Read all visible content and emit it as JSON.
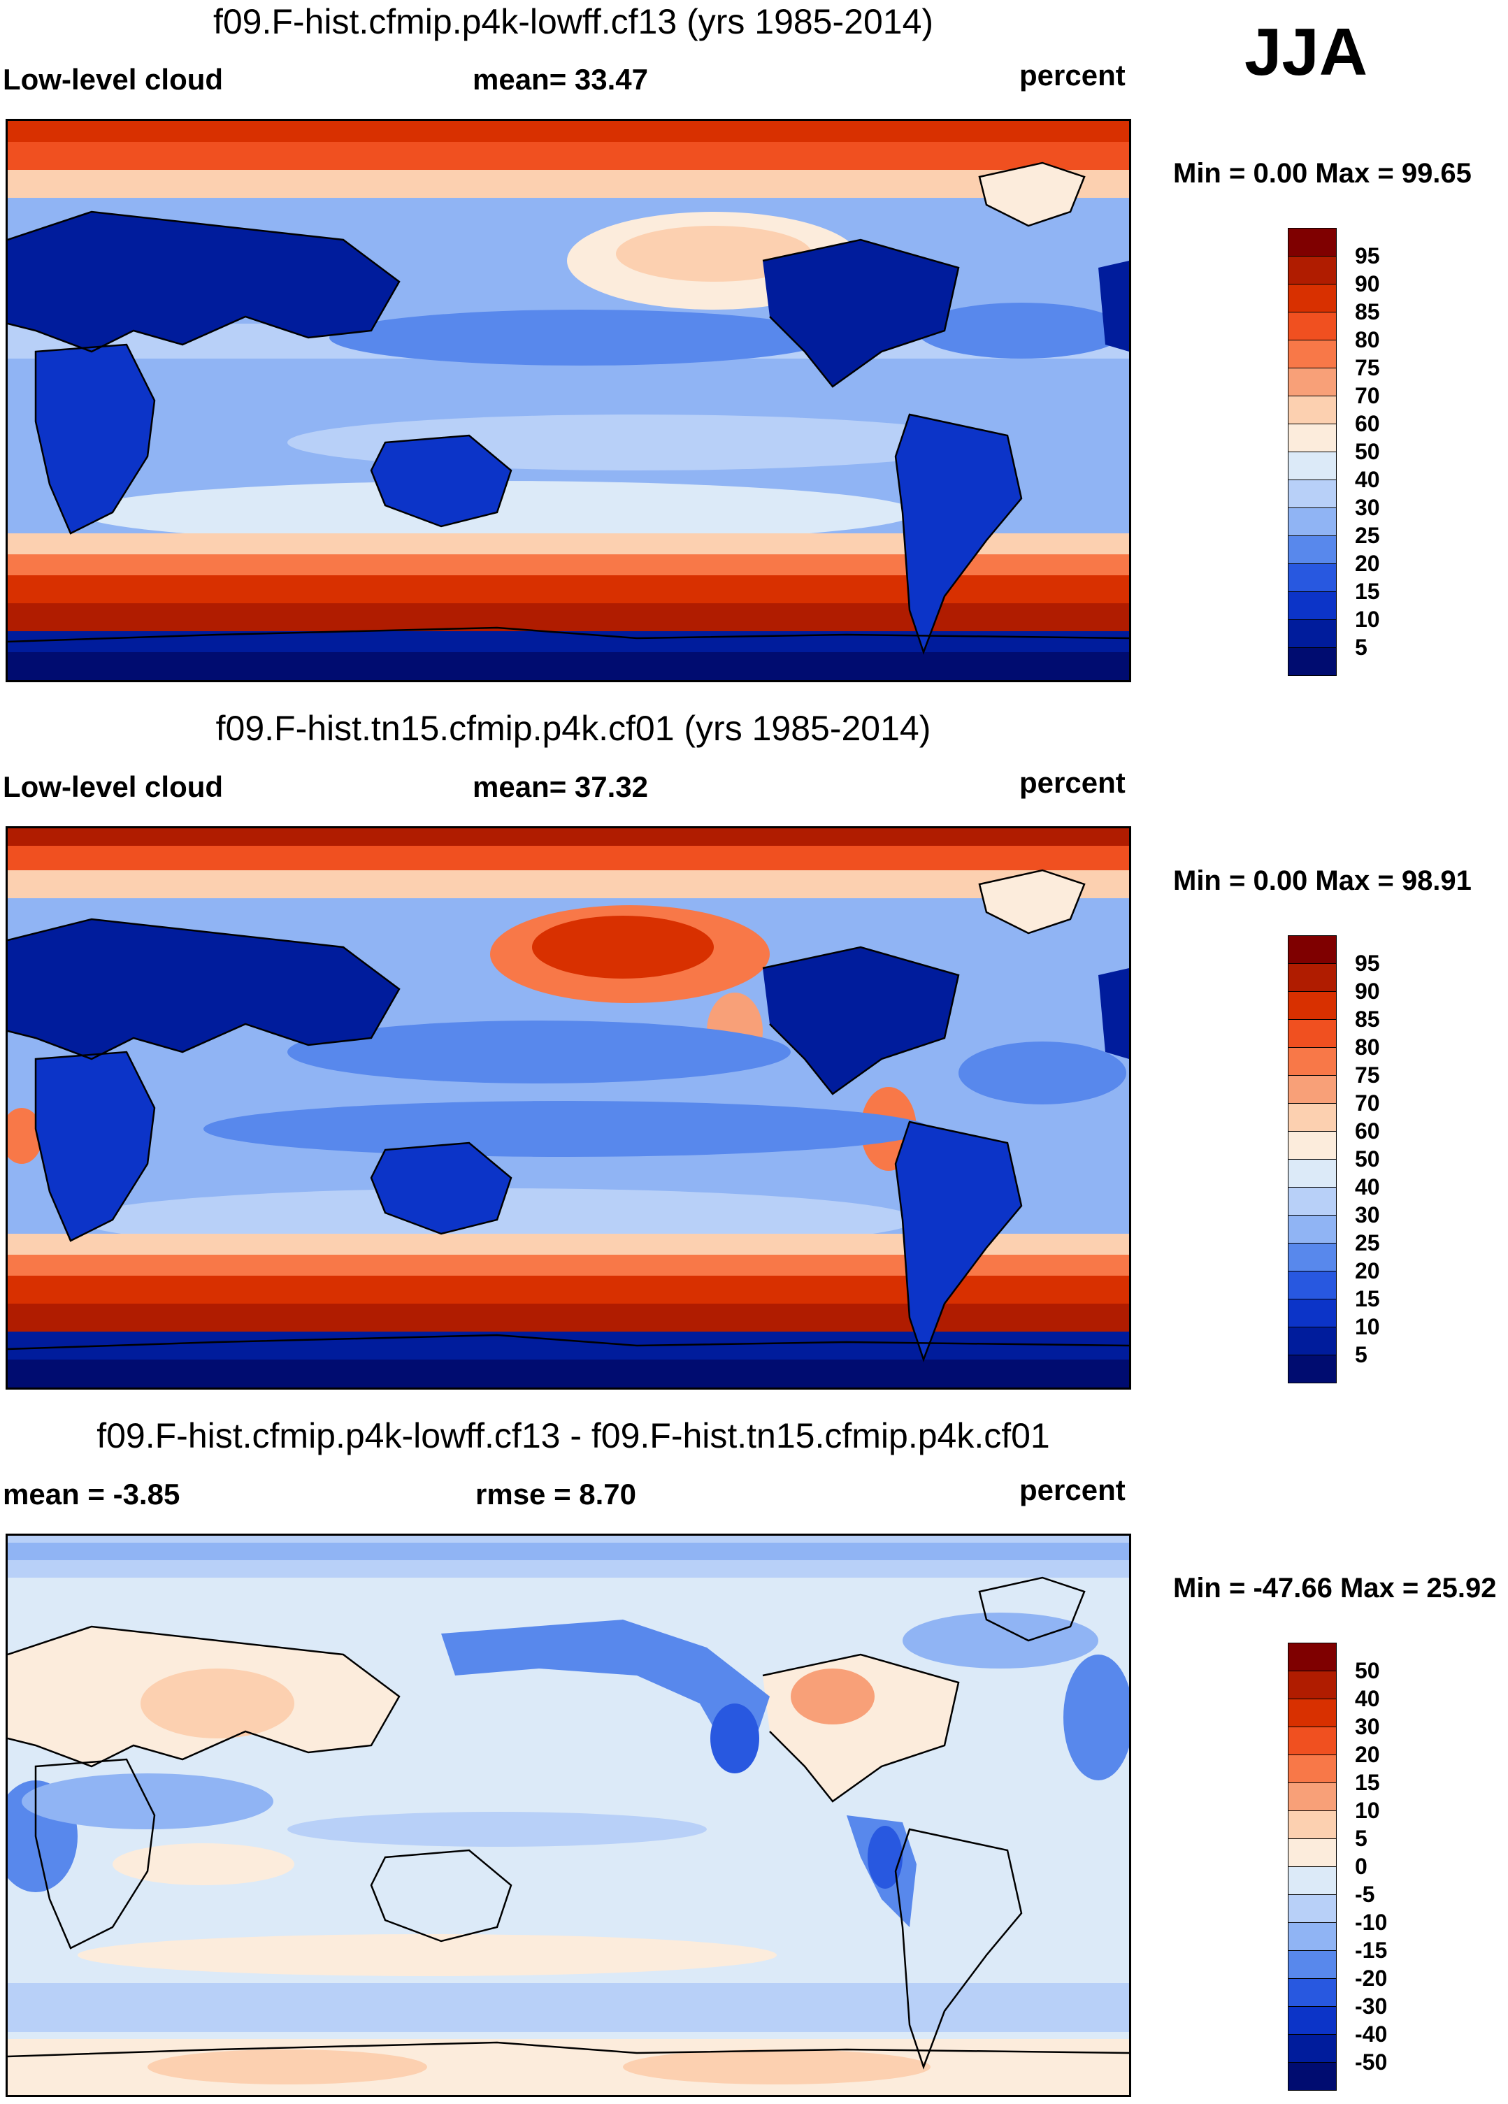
{
  "season": "JJA",
  "panels": [
    {
      "id": "p1",
      "title": "f09.F-hist.cfmip.p4k-lowff.cf13 (yrs 1985-2014)",
      "left_label": "Low-level cloud",
      "center_label": "mean=  33.47",
      "right_label": "percent",
      "minmax": "Min =   0.00 Max =  99.65",
      "colorbar": {
        "labels": [
          "95",
          "90",
          "85",
          "80",
          "75",
          "70",
          "60",
          "50",
          "40",
          "30",
          "25",
          "20",
          "15",
          "10",
          "5"
        ],
        "colors": [
          "#7f0000",
          "#b01c00",
          "#d83000",
          "#f05020",
          "#f87848",
          "#f8a078",
          "#fcd0b0",
          "#fcecdc",
          "#dceaf8",
          "#b8d0f8",
          "#90b4f4",
          "#5888ec",
          "#2858e0",
          "#0c34c8",
          "#001c9c",
          "#000c70"
        ]
      }
    },
    {
      "id": "p2",
      "title": "f09.F-hist.tn15.cfmip.p4k.cf01 (yrs 1985-2014)",
      "left_label": "Low-level cloud",
      "center_label": "mean=  37.32",
      "right_label": "percent",
      "minmax": "Min =   0.00 Max =  98.91",
      "colorbar": {
        "labels": [
          "95",
          "90",
          "85",
          "80",
          "75",
          "70",
          "60",
          "50",
          "40",
          "30",
          "25",
          "20",
          "15",
          "10",
          "5"
        ],
        "colors": [
          "#7f0000",
          "#b01c00",
          "#d83000",
          "#f05020",
          "#f87848",
          "#f8a078",
          "#fcd0b0",
          "#fcecdc",
          "#dceaf8",
          "#b8d0f8",
          "#90b4f4",
          "#5888ec",
          "#2858e0",
          "#0c34c8",
          "#001c9c",
          "#000c70"
        ]
      }
    },
    {
      "id": "p3",
      "title": "f09.F-hist.cfmip.p4k-lowff.cf13 - f09.F-hist.tn15.cfmip.p4k.cf01",
      "left_label": "mean =  -3.85",
      "center_label": "rmse =   8.70",
      "right_label": "percent",
      "minmax": "Min = -47.66 Max =  25.92",
      "colorbar": {
        "labels": [
          "50",
          "40",
          "30",
          "20",
          "15",
          "10",
          "5",
          "0",
          "-5",
          "-10",
          "-15",
          "-20",
          "-30",
          "-40",
          "-50"
        ],
        "colors": [
          "#7f0000",
          "#b01c00",
          "#d83000",
          "#f05020",
          "#f87848",
          "#f8a078",
          "#fcd0b0",
          "#fcecdc",
          "#dceaf8",
          "#b8d0f8",
          "#90b4f4",
          "#5888ec",
          "#2858e0",
          "#0c34c8",
          "#001c9c",
          "#000c70"
        ]
      }
    }
  ]
}
